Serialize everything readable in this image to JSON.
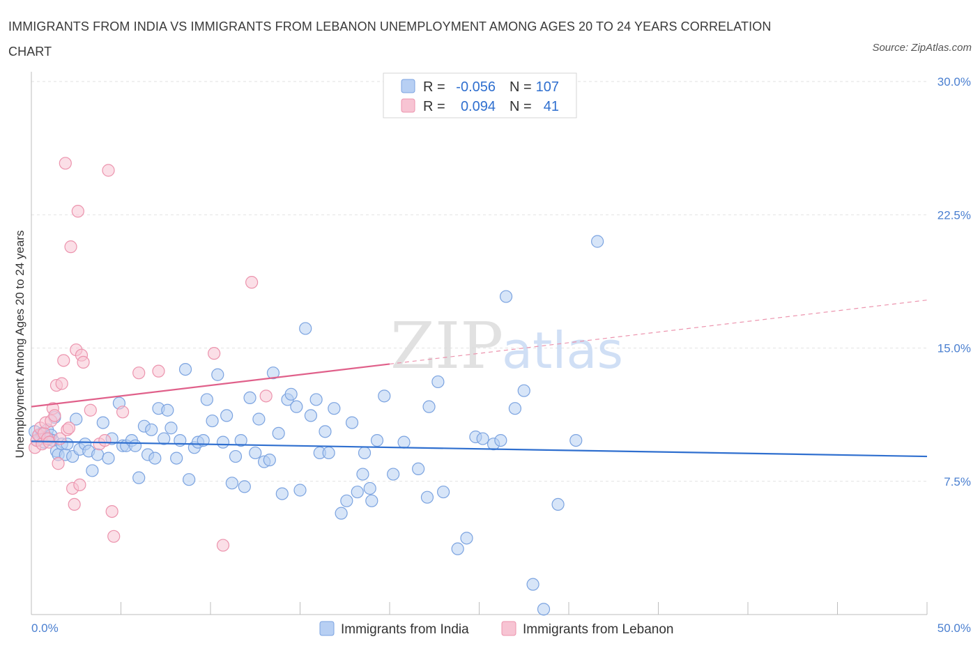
{
  "title": "IMMIGRANTS FROM INDIA VS IMMIGRANTS FROM LEBANON UNEMPLOYMENT AMONG AGES 20 TO 24 YEARS CORRELATION CHART",
  "source": "Source: ZipAtlas.com",
  "watermark": {
    "zip": "ZIP",
    "atlas": "atlas"
  },
  "colors": {
    "india_fill": "#b7cff3",
    "india_stroke": "#7ba3e0",
    "india_line": "#2f6fcf",
    "lebanon_fill": "#f7c4d3",
    "lebanon_stroke": "#ec93ad",
    "lebanon_line": "#e0608a",
    "grid": "#e2e2e2",
    "axis_text": "#4a7fd0"
  },
  "legend": {
    "india": {
      "r_label": "R =",
      "r_value": "-0.056",
      "n_label": "N =",
      "n_value": "107"
    },
    "lebanon": {
      "r_label": "R =",
      "r_value": "0.094",
      "n_label": "N =",
      "n_value": "41"
    }
  },
  "bottom_legend": {
    "india": "Immigrants from India",
    "lebanon": "Immigrants from Lebanon"
  },
  "chart_data": {
    "type": "scatter",
    "xlabel": "",
    "ylabel": "Unemployment Among Ages 20 to 24 years",
    "xlim": [
      0,
      50
    ],
    "ylim": [
      0,
      30
    ],
    "x_tick_labels": [
      {
        "value": 0,
        "label": "0.0%"
      },
      {
        "value": 50,
        "label": "50.0%"
      }
    ],
    "y_tick_labels": [
      {
        "value": 7.5,
        "label": "7.5%"
      },
      {
        "value": 15,
        "label": "15.0%"
      },
      {
        "value": 22.5,
        "label": "22.5%"
      },
      {
        "value": 30,
        "label": "30.0%"
      }
    ],
    "y_grid": [
      7.5,
      15,
      22.5,
      30
    ],
    "x_minor_ticks": [
      0,
      5,
      10,
      15,
      20,
      25,
      30,
      35,
      40,
      45,
      50
    ],
    "series": [
      {
        "name": "Immigrants from India",
        "color": "#7ba3e0",
        "trend": {
          "x": [
            0,
            50
          ],
          "y": [
            9.75,
            8.9
          ],
          "style": "solid"
        },
        "points": [
          [
            0.2,
            10.3
          ],
          [
            0.3,
            9.8
          ],
          [
            0.4,
            10.1
          ],
          [
            0.5,
            9.9
          ],
          [
            0.6,
            10.2
          ],
          [
            0.7,
            9.7
          ],
          [
            0.8,
            10.0
          ],
          [
            0.9,
            10.4
          ],
          [
            1.0,
            9.9
          ],
          [
            1.1,
            10.1
          ],
          [
            1.2,
            9.8
          ],
          [
            1.3,
            11.1
          ],
          [
            1.4,
            9.2
          ],
          [
            1.5,
            9.0
          ],
          [
            1.7,
            9.6
          ],
          [
            1.9,
            9.0
          ],
          [
            2.0,
            9.6
          ],
          [
            2.3,
            8.9
          ],
          [
            2.5,
            11.0
          ],
          [
            2.7,
            9.3
          ],
          [
            3.0,
            9.6
          ],
          [
            3.2,
            9.2
          ],
          [
            3.4,
            8.1
          ],
          [
            3.7,
            9.0
          ],
          [
            4.0,
            10.8
          ],
          [
            4.3,
            8.8
          ],
          [
            4.5,
            9.9
          ],
          [
            4.9,
            11.9
          ],
          [
            5.1,
            9.5
          ],
          [
            5.3,
            9.5
          ],
          [
            5.6,
            9.8
          ],
          [
            5.8,
            9.5
          ],
          [
            6.0,
            7.7
          ],
          [
            6.3,
            10.6
          ],
          [
            6.5,
            9.0
          ],
          [
            6.7,
            10.4
          ],
          [
            6.9,
            8.8
          ],
          [
            7.1,
            11.6
          ],
          [
            7.4,
            9.9
          ],
          [
            7.6,
            11.5
          ],
          [
            7.8,
            10.5
          ],
          [
            8.1,
            8.8
          ],
          [
            8.3,
            9.8
          ],
          [
            8.6,
            13.8
          ],
          [
            8.8,
            7.6
          ],
          [
            9.1,
            9.4
          ],
          [
            9.3,
            9.7
          ],
          [
            9.6,
            9.8
          ],
          [
            9.8,
            12.1
          ],
          [
            10.1,
            10.9
          ],
          [
            10.4,
            13.5
          ],
          [
            10.7,
            9.7
          ],
          [
            10.9,
            11.2
          ],
          [
            11.2,
            7.4
          ],
          [
            11.4,
            8.9
          ],
          [
            11.7,
            9.8
          ],
          [
            11.9,
            7.2
          ],
          [
            12.2,
            12.2
          ],
          [
            12.5,
            9.1
          ],
          [
            12.7,
            11.0
          ],
          [
            13.0,
            8.6
          ],
          [
            13.3,
            8.7
          ],
          [
            13.5,
            13.6
          ],
          [
            13.8,
            10.2
          ],
          [
            14.0,
            6.8
          ],
          [
            14.3,
            12.1
          ],
          [
            14.5,
            12.4
          ],
          [
            14.8,
            11.7
          ],
          [
            15.0,
            7.0
          ],
          [
            15.3,
            16.1
          ],
          [
            15.6,
            11.2
          ],
          [
            15.9,
            12.1
          ],
          [
            16.1,
            9.1
          ],
          [
            16.4,
            10.3
          ],
          [
            16.6,
            9.1
          ],
          [
            16.9,
            11.6
          ],
          [
            17.3,
            5.7
          ],
          [
            17.6,
            6.4
          ],
          [
            17.9,
            10.8
          ],
          [
            18.2,
            6.9
          ],
          [
            18.5,
            7.9
          ],
          [
            18.6,
            9.1
          ],
          [
            18.9,
            7.1
          ],
          [
            19.0,
            6.4
          ],
          [
            19.3,
            9.8
          ],
          [
            19.7,
            12.3
          ],
          [
            20.2,
            7.9
          ],
          [
            20.8,
            9.7
          ],
          [
            21.6,
            8.2
          ],
          [
            22.1,
            6.6
          ],
          [
            22.7,
            13.1
          ],
          [
            22.2,
            11.7
          ],
          [
            23.0,
            6.9
          ],
          [
            23.8,
            3.7
          ],
          [
            24.3,
            4.3
          ],
          [
            24.8,
            10.0
          ],
          [
            25.2,
            9.9
          ],
          [
            25.8,
            9.6
          ],
          [
            26.2,
            9.8
          ],
          [
            26.5,
            17.9
          ],
          [
            27.0,
            11.6
          ],
          [
            27.5,
            12.6
          ],
          [
            28.0,
            1.7
          ],
          [
            28.6,
            0.3
          ],
          [
            29.4,
            6.2
          ],
          [
            30.4,
            9.8
          ],
          [
            31.6,
            21.0
          ]
        ]
      },
      {
        "name": "Immigrants from Lebanon",
        "color": "#ec93ad",
        "trend": {
          "x": [
            0,
            20
          ],
          "y": [
            11.7,
            14.1
          ],
          "x_dashed": [
            20,
            50
          ],
          "y_dashed": [
            14.1,
            17.7
          ],
          "style": "solid-then-dashed"
        },
        "points": [
          [
            0.2,
            9.4
          ],
          [
            0.3,
            9.8
          ],
          [
            0.4,
            10.1
          ],
          [
            0.5,
            10.5
          ],
          [
            0.6,
            9.6
          ],
          [
            0.7,
            10.2
          ],
          [
            0.8,
            10.8
          ],
          [
            0.9,
            9.9
          ],
          [
            1.0,
            9.7
          ],
          [
            1.1,
            10.9
          ],
          [
            1.2,
            11.6
          ],
          [
            1.3,
            11.2
          ],
          [
            1.4,
            12.9
          ],
          [
            1.5,
            8.5
          ],
          [
            1.6,
            9.9
          ],
          [
            1.7,
            13.0
          ],
          [
            1.8,
            14.3
          ],
          [
            1.9,
            25.4
          ],
          [
            2.0,
            10.4
          ],
          [
            2.1,
            10.5
          ],
          [
            2.2,
            20.7
          ],
          [
            2.3,
            7.1
          ],
          [
            2.4,
            6.2
          ],
          [
            2.5,
            14.9
          ],
          [
            2.6,
            22.7
          ],
          [
            2.7,
            7.3
          ],
          [
            2.8,
            14.6
          ],
          [
            2.9,
            14.2
          ],
          [
            3.3,
            11.5
          ],
          [
            3.8,
            9.6
          ],
          [
            4.1,
            9.8
          ],
          [
            4.3,
            25.0
          ],
          [
            4.5,
            5.8
          ],
          [
            4.6,
            4.4
          ],
          [
            5.1,
            11.4
          ],
          [
            6.0,
            13.6
          ],
          [
            7.1,
            13.7
          ],
          [
            10.2,
            14.7
          ],
          [
            10.7,
            3.9
          ],
          [
            12.3,
            18.7
          ],
          [
            13.1,
            12.3
          ]
        ]
      }
    ]
  }
}
